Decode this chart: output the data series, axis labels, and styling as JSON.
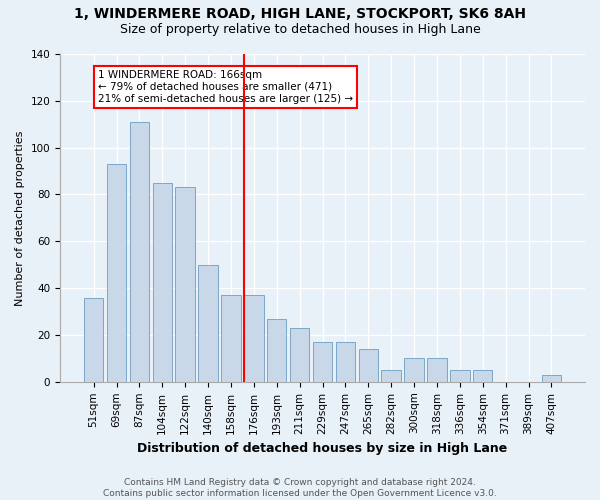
{
  "title": "1, WINDERMERE ROAD, HIGH LANE, STOCKPORT, SK6 8AH",
  "subtitle": "Size of property relative to detached houses in High Lane",
  "xlabel": "Distribution of detached houses by size in High Lane",
  "ylabel": "Number of detached properties",
  "footer_line1": "Contains HM Land Registry data © Crown copyright and database right 2024.",
  "footer_line2": "Contains public sector information licensed under the Open Government Licence v3.0.",
  "categories": [
    "51sqm",
    "69sqm",
    "87sqm",
    "104sqm",
    "122sqm",
    "140sqm",
    "158sqm",
    "176sqm",
    "193sqm",
    "211sqm",
    "229sqm",
    "247sqm",
    "265sqm",
    "282sqm",
    "300sqm",
    "318sqm",
    "336sqm",
    "354sqm",
    "371sqm",
    "389sqm",
    "407sqm"
  ],
  "values": [
    36,
    93,
    111,
    85,
    83,
    50,
    37,
    37,
    27,
    23,
    17,
    17,
    14,
    5,
    10,
    10,
    5,
    5,
    0,
    0,
    3
  ],
  "bar_color": "#c8d8e8",
  "bar_edge_color": "#7aa8c8",
  "highlight_index": 7,
  "vline_color": "red",
  "annotation_text": "1 WINDERMERE ROAD: 166sqm\n← 79% of detached houses are smaller (471)\n21% of semi-detached houses are larger (125) →",
  "annotation_box_color": "white",
  "annotation_box_edge_color": "red",
  "ylim": [
    0,
    140
  ],
  "yticks": [
    0,
    20,
    40,
    60,
    80,
    100,
    120,
    140
  ],
  "background_color": "#e8f0f8",
  "plot_background": "#e8f0f8",
  "grid_color": "white",
  "title_fontsize": 10,
  "subtitle_fontsize": 9,
  "ylabel_fontsize": 8,
  "xlabel_fontsize": 9,
  "tick_fontsize": 7.5,
  "footer_fontsize": 6.5,
  "annotation_fontsize": 7.5
}
